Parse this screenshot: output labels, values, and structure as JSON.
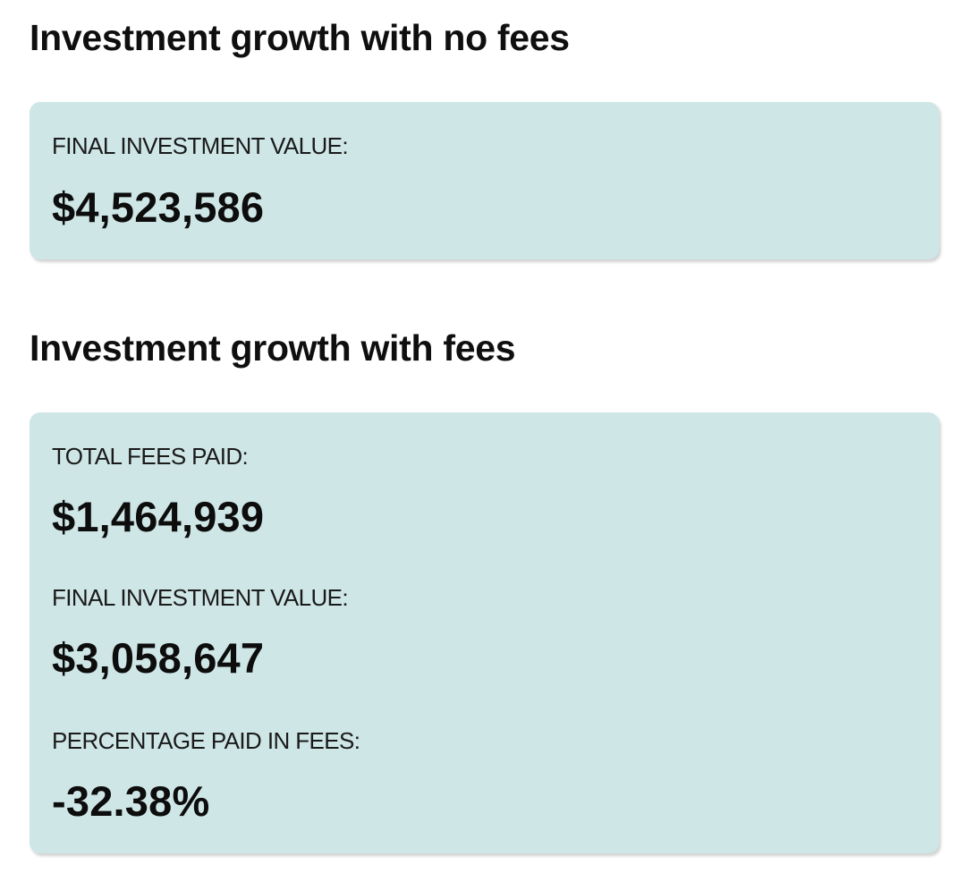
{
  "no_fees": {
    "title": "Investment growth with no fees",
    "final_value_label": "FINAL INVESTMENT VALUE:",
    "final_value": "$4,523,586"
  },
  "with_fees": {
    "title": "Investment growth with fees",
    "total_fees_label": "TOTAL FEES PAID:",
    "total_fees": "$1,464,939",
    "final_value_label": "FINAL INVESTMENT VALUE:",
    "final_value": "$3,058,647",
    "percentage_label": "PERCENTAGE PAID IN FEES:",
    "percentage": "-32.38%"
  },
  "colors": {
    "card_background": "#cfe6e6",
    "text": "#111111"
  }
}
